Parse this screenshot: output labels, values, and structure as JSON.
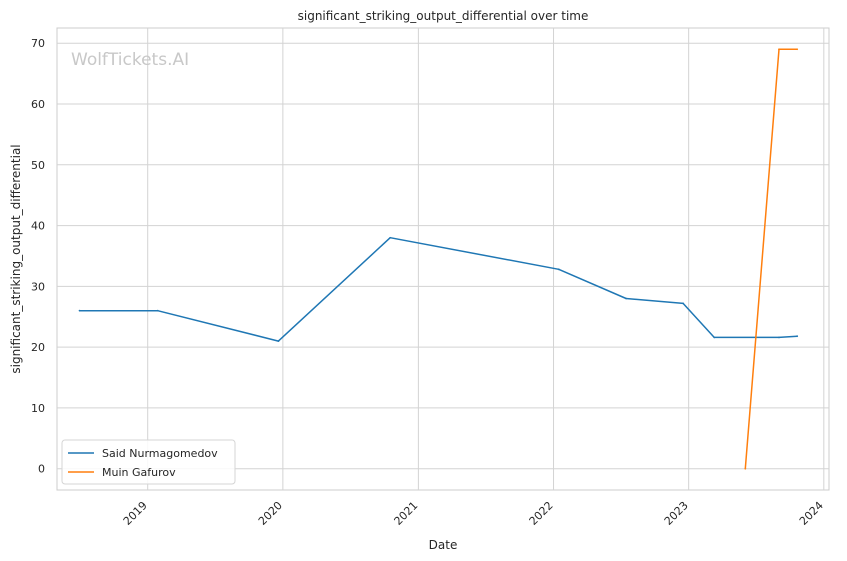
{
  "chart_data": {
    "type": "line",
    "title": "significant_striking_output_differential over time",
    "xlabel": "Date",
    "ylabel": "significant_striking_output_differential",
    "watermark": "WolfTickets.AI",
    "x_ticks": [
      "2019",
      "2020",
      "2021",
      "2022",
      "2023",
      "2024"
    ],
    "y_ticks": [
      "0",
      "10",
      "20",
      "30",
      "40",
      "50",
      "60",
      "70"
    ],
    "xlim": [
      "2018-05-01",
      "2024-01-15"
    ],
    "ylim": [
      -3.5,
      72.5
    ],
    "grid": true,
    "legend_position": "lower-left",
    "series": [
      {
        "name": "Said Nurmagomedov",
        "color": "#1f77b4",
        "points": [
          {
            "x": "2018-07-01",
            "y": 26.0
          },
          {
            "x": "2019-01-28",
            "y": 26.0
          },
          {
            "x": "2019-12-20",
            "y": 21.0
          },
          {
            "x": "2020-10-17",
            "y": 38.0
          },
          {
            "x": "2022-01-15",
            "y": 32.8
          },
          {
            "x": "2022-07-16",
            "y": 28.0
          },
          {
            "x": "2022-12-17",
            "y": 27.2
          },
          {
            "x": "2023-03-11",
            "y": 21.6
          },
          {
            "x": "2023-09-02",
            "y": 21.6
          },
          {
            "x": "2023-10-21",
            "y": 21.8
          }
        ]
      },
      {
        "name": "Muin Gafurov",
        "color": "#ff7f0e",
        "points": [
          {
            "x": "2023-06-03",
            "y": 0.0
          },
          {
            "x": "2023-09-02",
            "y": 69.0
          },
          {
            "x": "2023-10-21",
            "y": 69.0
          }
        ]
      }
    ]
  }
}
